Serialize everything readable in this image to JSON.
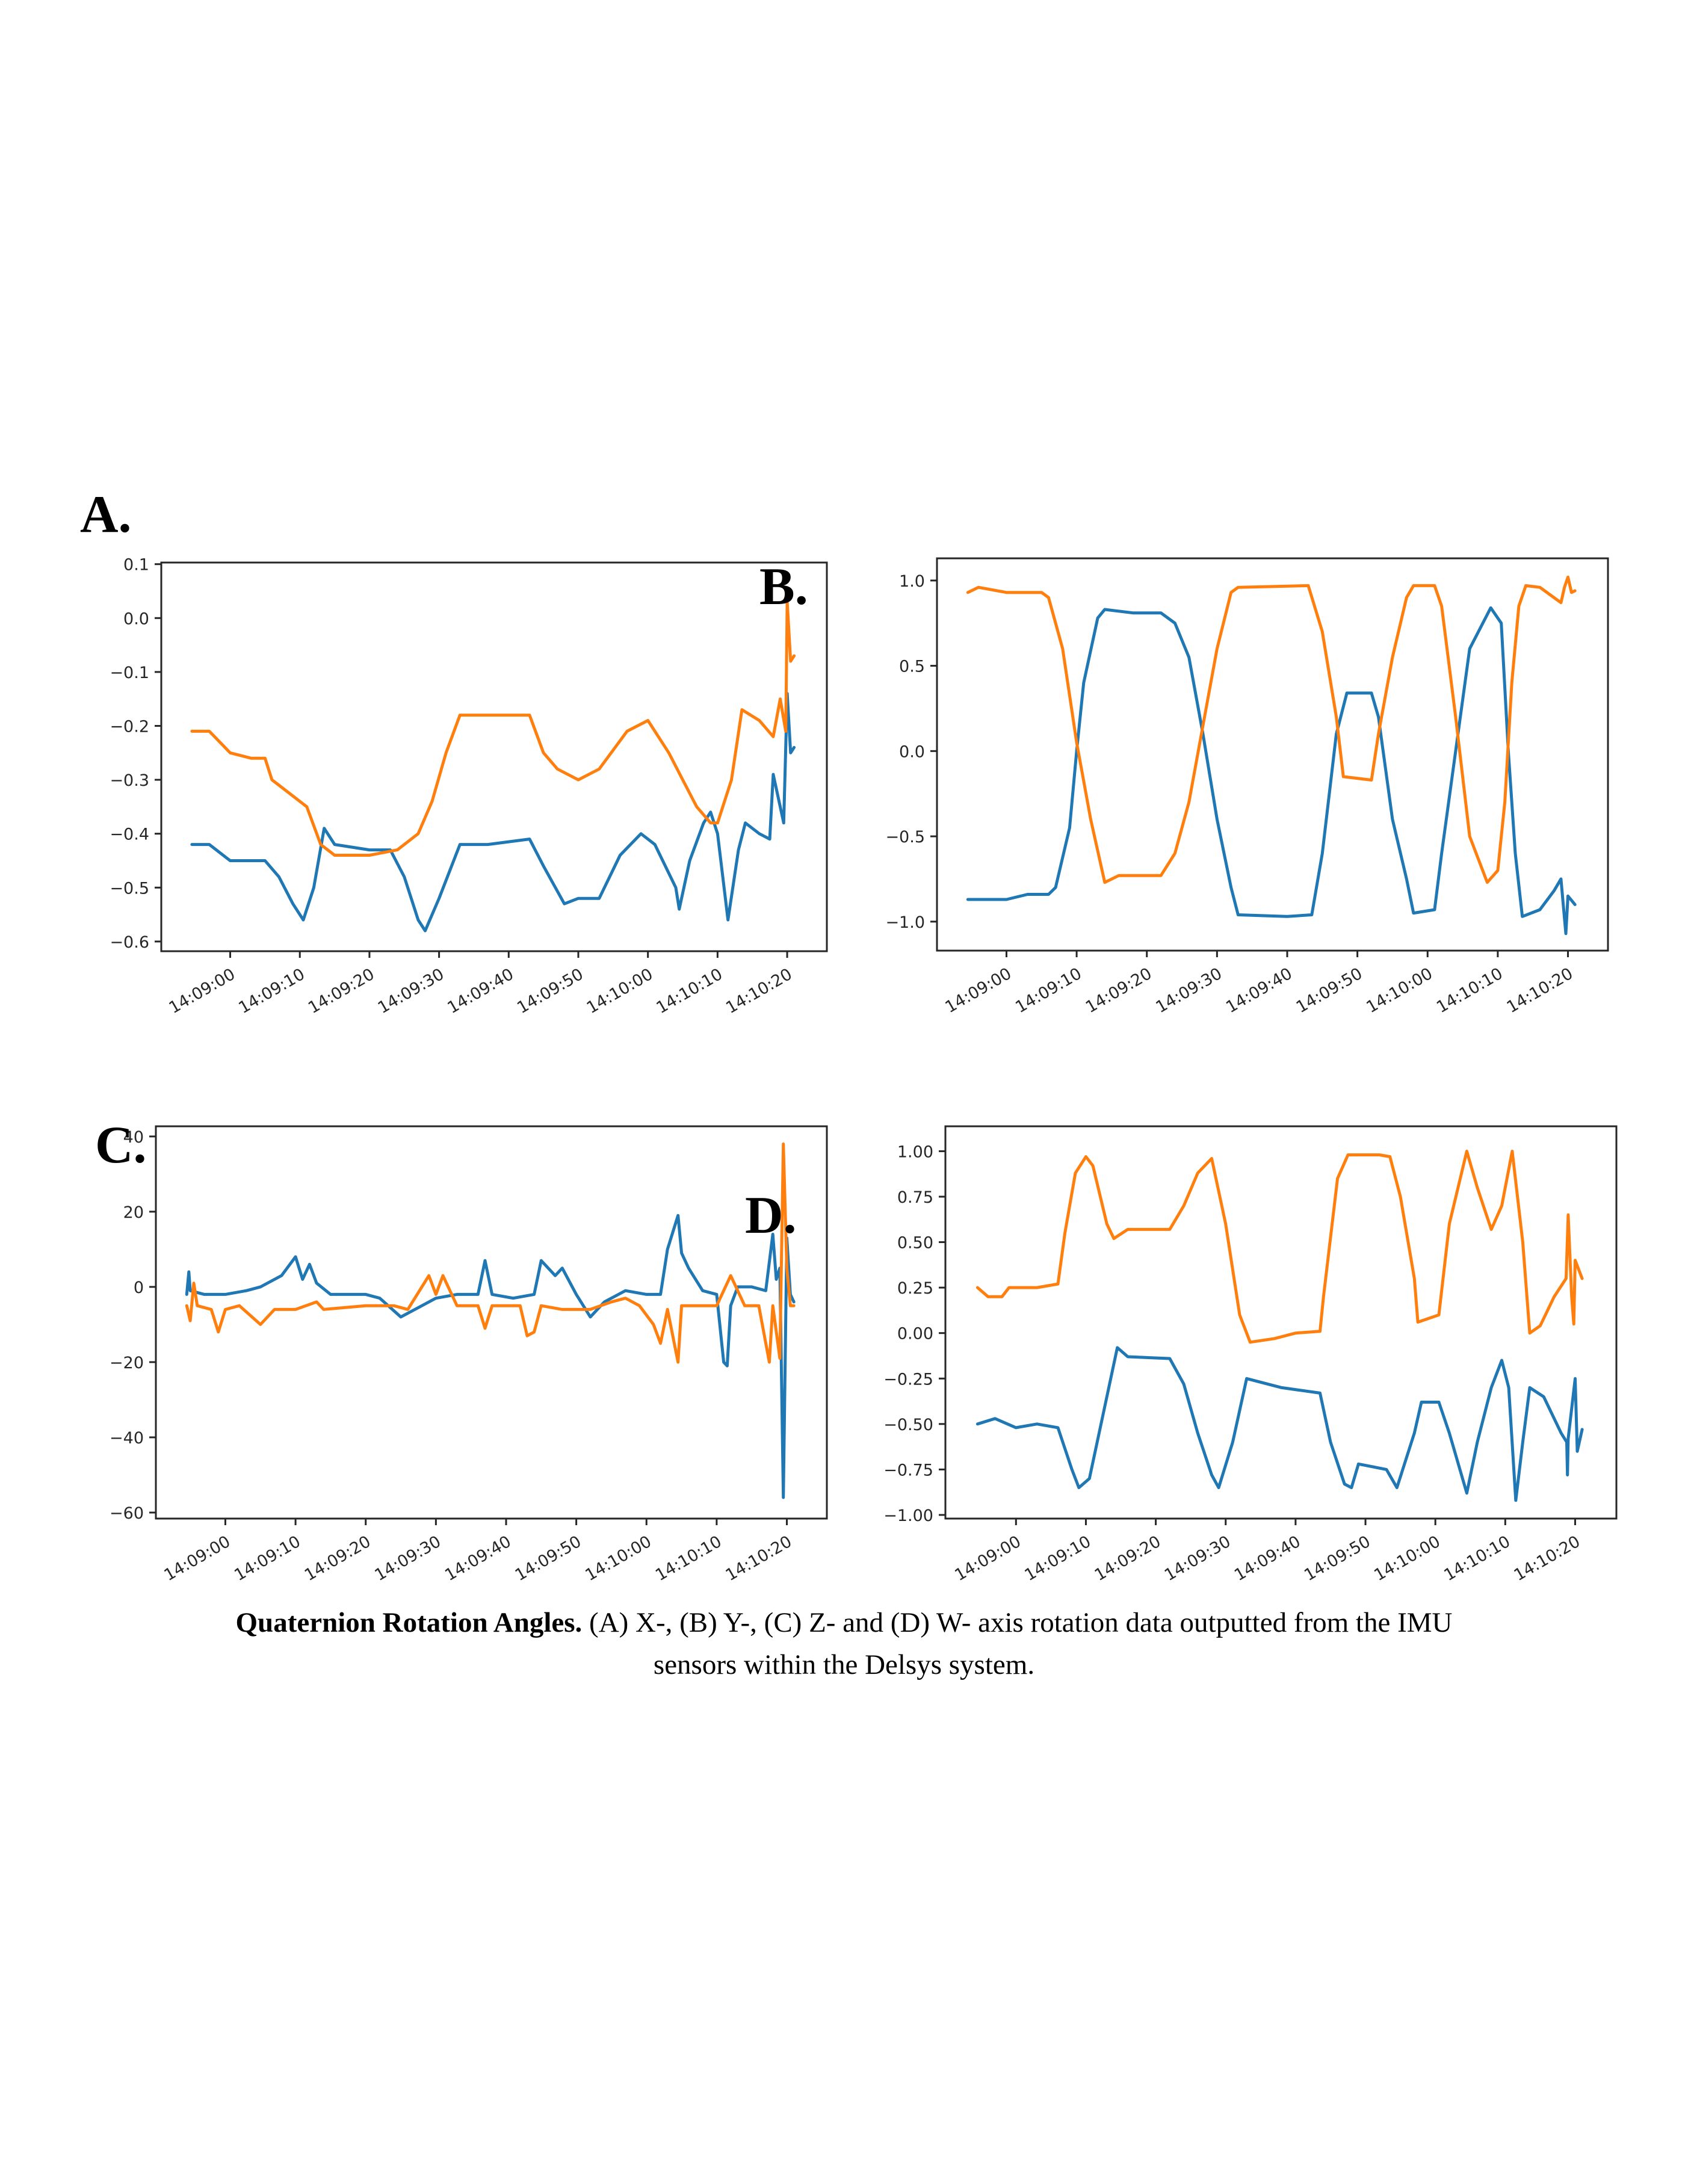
{
  "figure": {
    "panel_labels": [
      "A.",
      "B.",
      "C.",
      "D."
    ],
    "caption": {
      "bold": "Quaternion Rotation Angles.",
      "line1_rest": " (A) X-, (B) Y-, (C) Z- and (D) W- axis rotation data outputted from the IMU",
      "line2": "sensors within the Delsys system."
    },
    "colors": {
      "series1": "#1f77b4",
      "series2": "#ff7f0e",
      "axis": "#262626"
    }
  },
  "chart_data": [
    {
      "id": "A",
      "type": "line",
      "title": "",
      "xlabel": "",
      "ylabel": "",
      "x_unit": "seconds relative to 14:09:00",
      "xlim": [
        -9.9,
        85.7
      ],
      "ylim": [
        -0.618,
        0.103
      ],
      "xticks": [
        0,
        10,
        20,
        30,
        40,
        50,
        60,
        70,
        80
      ],
      "xtick_labels": [
        "14:09:00",
        "14:09:10",
        "14:09:20",
        "14:09:30",
        "14:09:40",
        "14:09:50",
        "14:10:00",
        "14:10:10",
        "14:10:20"
      ],
      "yticks": [
        0.1,
        0.0,
        -0.1,
        -0.2,
        -0.3,
        -0.4,
        -0.5,
        -0.6
      ],
      "ytick_labels": [
        "0.1",
        "0.0",
        "−0.1",
        "−0.2",
        "−0.3",
        "−0.4",
        "−0.5",
        "−0.6"
      ],
      "grid": false,
      "legend": "none",
      "series": [
        {
          "name": "series 1 (blue)",
          "color": "#1f77b4",
          "x": [
            -5.5,
            -3,
            0,
            5,
            7,
            9,
            10.5,
            12,
            13.5,
            15,
            20,
            23,
            25,
            27,
            28,
            30,
            33,
            37,
            43,
            45,
            48,
            50,
            53,
            56,
            59,
            61,
            64,
            64.5,
            66,
            68,
            69,
            70,
            71.5,
            73,
            74,
            76,
            77.5,
            78,
            79.5,
            80,
            80.5,
            81
          ],
          "y": [
            -0.42,
            -0.42,
            -0.45,
            -0.45,
            -0.48,
            -0.53,
            -0.56,
            -0.5,
            -0.39,
            -0.42,
            -0.43,
            -0.43,
            -0.48,
            -0.56,
            -0.58,
            -0.52,
            -0.42,
            -0.42,
            -0.41,
            -0.46,
            -0.53,
            -0.52,
            -0.52,
            -0.44,
            -0.4,
            -0.42,
            -0.5,
            -0.54,
            -0.45,
            -0.38,
            -0.36,
            -0.4,
            -0.56,
            -0.43,
            -0.38,
            -0.4,
            -0.41,
            -0.29,
            -0.38,
            -0.14,
            -0.25,
            -0.24
          ]
        },
        {
          "name": "series 2 (orange)",
          "color": "#ff7f0e",
          "x": [
            -5.5,
            -3,
            0,
            3,
            5,
            6,
            9,
            11,
            13,
            15,
            20,
            24,
            27,
            29,
            31,
            33,
            37,
            43,
            45,
            47,
            50,
            53,
            57,
            60,
            63,
            65,
            67,
            69,
            70,
            72,
            73.5,
            76,
            78,
            79,
            79.8,
            80,
            80.5,
            81
          ],
          "y": [
            -0.21,
            -0.21,
            -0.25,
            -0.26,
            -0.26,
            -0.3,
            -0.33,
            -0.35,
            -0.42,
            -0.44,
            -0.44,
            -0.43,
            -0.4,
            -0.34,
            -0.25,
            -0.18,
            -0.18,
            -0.18,
            -0.25,
            -0.28,
            -0.3,
            -0.28,
            -0.21,
            -0.19,
            -0.25,
            -0.3,
            -0.35,
            -0.38,
            -0.38,
            -0.3,
            -0.17,
            -0.19,
            -0.22,
            -0.15,
            -0.21,
            0.03,
            -0.08,
            -0.07
          ]
        }
      ]
    },
    {
      "id": "B",
      "type": "line",
      "title": "",
      "xlabel": "",
      "ylabel": "",
      "x_unit": "seconds relative to 14:09:00",
      "xlim": [
        -9.9,
        85.7
      ],
      "ylim": [
        -1.17,
        1.13
      ],
      "xticks": [
        0,
        10,
        20,
        30,
        40,
        50,
        60,
        70,
        80
      ],
      "xtick_labels": [
        "14:09:00",
        "14:09:10",
        "14:09:20",
        "14:09:30",
        "14:09:40",
        "14:09:50",
        "14:10:00",
        "14:10:10",
        "14:10:20"
      ],
      "yticks": [
        1.0,
        0.5,
        0.0,
        -0.5,
        -1.0
      ],
      "ytick_labels": [
        "1.0",
        "0.5",
        "0.0",
        "−0.5",
        "−1.0"
      ],
      "grid": false,
      "legend": "none",
      "series": [
        {
          "name": "series 1 (blue)",
          "color": "#1f77b4",
          "x": [
            -5.5,
            0,
            3,
            6,
            7,
            9,
            10,
            11,
            13,
            14,
            18,
            22,
            24,
            26,
            28,
            30,
            32,
            33,
            40,
            43.5,
            45,
            47,
            48.5,
            52,
            53,
            55,
            57,
            58,
            61,
            62,
            64,
            66,
            69,
            70.5,
            71.5,
            72.5,
            73.5,
            76,
            78,
            79,
            79.7,
            80,
            81
          ],
          "y": [
            -0.87,
            -0.87,
            -0.84,
            -0.84,
            -0.8,
            -0.45,
            0,
            0.4,
            0.78,
            0.83,
            0.81,
            0.81,
            0.75,
            0.55,
            0.1,
            -0.4,
            -0.8,
            -0.96,
            -0.97,
            -0.96,
            -0.6,
            0.1,
            0.34,
            0.34,
            0.2,
            -0.4,
            -0.75,
            -0.95,
            -0.93,
            -0.6,
            0,
            0.6,
            0.84,
            0.75,
            0,
            -0.6,
            -0.97,
            -0.93,
            -0.82,
            -0.75,
            -1.07,
            -0.85,
            -0.9
          ]
        },
        {
          "name": "series 2 (orange)",
          "color": "#ff7f0e",
          "x": [
            -5.5,
            -4,
            0,
            5,
            6,
            8,
            10,
            12,
            14,
            16,
            22,
            24,
            26,
            28,
            30,
            32,
            33,
            43,
            45,
            47,
            48,
            52,
            53,
            55,
            57,
            58,
            61,
            62,
            64,
            66,
            68.5,
            70,
            71,
            72,
            73,
            74,
            76,
            78,
            79,
            79.5,
            80,
            80.5,
            81
          ],
          "y": [
            0.93,
            0.96,
            0.93,
            0.93,
            0.9,
            0.6,
            0.05,
            -0.4,
            -0.77,
            -0.73,
            -0.73,
            -0.6,
            -0.3,
            0.15,
            0.6,
            0.93,
            0.96,
            0.97,
            0.7,
            0.2,
            -0.15,
            -0.17,
            0.1,
            0.55,
            0.9,
            0.97,
            0.97,
            0.85,
            0.2,
            -0.5,
            -0.77,
            -0.7,
            -0.3,
            0.4,
            0.85,
            0.97,
            0.96,
            0.9,
            0.87,
            0.96,
            1.02,
            0.93,
            0.94
          ]
        }
      ]
    },
    {
      "id": "C",
      "type": "line",
      "title": "",
      "xlabel": "",
      "ylabel": "",
      "x_unit": "seconds relative to 14:09:00",
      "xlim": [
        -9.9,
        85.7
      ],
      "ylim": [
        -61.6,
        42.7
      ],
      "xticks": [
        0,
        10,
        20,
        30,
        40,
        50,
        60,
        70,
        80
      ],
      "xtick_labels": [
        "14:09:00",
        "14:09:10",
        "14:09:20",
        "14:09:30",
        "14:09:40",
        "14:09:50",
        "14:10:00",
        "14:10:10",
        "14:10:20"
      ],
      "yticks": [
        40,
        20,
        0,
        -20,
        -40,
        -60
      ],
      "ytick_labels": [
        "40",
        "20",
        "0",
        "−20",
        "−40",
        "−60"
      ],
      "grid": false,
      "legend": "none",
      "series": [
        {
          "name": "series 1 (blue)",
          "color": "#1f77b4",
          "x": [
            -5.5,
            -5.2,
            -5,
            -3,
            0,
            3,
            5,
            8,
            10,
            11,
            12,
            13,
            15,
            20,
            22,
            25,
            27,
            30,
            33,
            36,
            37,
            38,
            41,
            44,
            45,
            47,
            48,
            50,
            52,
            54,
            57,
            60,
            62,
            63,
            64.5,
            65,
            66,
            68,
            70,
            71,
            71.5,
            72,
            73,
            75,
            77,
            78,
            78.5,
            79,
            79.5,
            80,
            80.5,
            81
          ],
          "y": [
            -2,
            4,
            -1,
            -2,
            -2,
            -1,
            0,
            3,
            8,
            2,
            6,
            1,
            -2,
            -2,
            -3,
            -8,
            -6,
            -3,
            -2,
            -2,
            7,
            -2,
            -3,
            -2,
            7,
            3,
            5,
            -2,
            -8,
            -4,
            -1,
            -2,
            -2,
            10,
            19,
            9,
            5,
            -1,
            -2,
            -20,
            -21,
            -5,
            0,
            0,
            -1,
            14,
            2,
            5,
            -56,
            13,
            -2,
            -4
          ]
        },
        {
          "name": "series 2 (orange)",
          "color": "#ff7f0e",
          "x": [
            -5.5,
            -5,
            -4.5,
            -4,
            -2,
            -1,
            0,
            2,
            5,
            7,
            10,
            13,
            14,
            20,
            24,
            26,
            29,
            30,
            31,
            33,
            36,
            37,
            38,
            42,
            43,
            44,
            45,
            48,
            52,
            55,
            57,
            59,
            61,
            62,
            63,
            64.5,
            65,
            68,
            70,
            72,
            74,
            76,
            77.5,
            78,
            79,
            79.5,
            80,
            80.5,
            81
          ],
          "y": [
            -5,
            -9,
            1,
            -5,
            -6,
            -12,
            -6,
            -5,
            -10,
            -6,
            -6,
            -4,
            -6,
            -5,
            -5,
            -6,
            3,
            -2,
            3,
            -5,
            -5,
            -11,
            -5,
            -5,
            -13,
            -12,
            -5,
            -6,
            -6,
            -4,
            -3,
            -5,
            -10,
            -15,
            -6,
            -20,
            -5,
            -5,
            -5,
            3,
            -5,
            -5,
            -20,
            -5,
            -19,
            38,
            5,
            -5,
            -5
          ]
        }
      ]
    },
    {
      "id": "D",
      "type": "line",
      "title": "",
      "xlabel": "",
      "ylabel": "",
      "x_unit": "seconds relative to 14:09:00",
      "xlim": [
        -10.1,
        85.9
      ],
      "ylim": [
        -1.02,
        1.137
      ],
      "xticks": [
        0,
        10,
        20,
        30,
        40,
        50,
        60,
        70,
        80
      ],
      "xtick_labels": [
        "14:09:00",
        "14:09:10",
        "14:09:20",
        "14:09:30",
        "14:09:40",
        "14:09:50",
        "14:10:00",
        "14:10:10",
        "14:10:20"
      ],
      "yticks": [
        1.0,
        0.75,
        0.5,
        0.25,
        0.0,
        -0.25,
        -0.5,
        -0.75,
        -1.0
      ],
      "ytick_labels": [
        "1.00",
        "0.75",
        "0.50",
        "0.25",
        "0.00",
        "−0.25",
        "−0.50",
        "−0.75",
        "−1.00"
      ],
      "grid": false,
      "legend": "none",
      "series": [
        {
          "name": "series 1 (blue)",
          "color": "#1f77b4",
          "x": [
            -5.5,
            -3,
            0,
            3,
            6,
            8,
            9,
            10.5,
            13,
            14.5,
            16,
            22,
            24,
            26,
            28,
            29,
            31,
            33,
            38,
            43.5,
            45,
            47,
            48,
            49,
            53,
            54.5,
            57,
            58,
            60.5,
            62,
            64.5,
            66,
            68,
            69.5,
            70.5,
            71.5,
            72.5,
            73.5,
            75.5,
            78,
            78.8,
            78.9,
            79,
            80,
            80.3,
            81
          ],
          "y": [
            -0.5,
            -0.47,
            -0.52,
            -0.5,
            -0.52,
            -0.75,
            -0.85,
            -0.8,
            -0.35,
            -0.08,
            -0.13,
            -0.14,
            -0.28,
            -0.55,
            -0.78,
            -0.85,
            -0.6,
            -0.25,
            -0.3,
            -0.33,
            -0.6,
            -0.83,
            -0.85,
            -0.72,
            -0.75,
            -0.85,
            -0.55,
            -0.38,
            -0.38,
            -0.55,
            -0.88,
            -0.6,
            -0.3,
            -0.15,
            -0.3,
            -0.92,
            -0.6,
            -0.3,
            -0.35,
            -0.55,
            -0.6,
            -0.78,
            -0.58,
            -0.25,
            -0.65,
            -0.53
          ]
        },
        {
          "name": "series 2 (orange)",
          "color": "#ff7f0e",
          "x": [
            -5.5,
            -4,
            -2,
            -1,
            3,
            6,
            7,
            8.5,
            10,
            11,
            13,
            14,
            16,
            22,
            24,
            26,
            28,
            30,
            32,
            33.5,
            37,
            40,
            43.5,
            44,
            46,
            47.5,
            52,
            53.5,
            55,
            57,
            57.5,
            60.5,
            62,
            64.5,
            66,
            68,
            69.5,
            71,
            72.5,
            73.5,
            75,
            77,
            78.7,
            79,
            79.5,
            79.8,
            80,
            81
          ],
          "y": [
            0.25,
            0.2,
            0.2,
            0.25,
            0.25,
            0.27,
            0.55,
            0.88,
            0.97,
            0.92,
            0.6,
            0.52,
            0.57,
            0.57,
            0.7,
            0.88,
            0.96,
            0.6,
            0.1,
            -0.05,
            -0.03,
            0,
            0.01,
            0.2,
            0.85,
            0.98,
            0.98,
            0.97,
            0.75,
            0.3,
            0.06,
            0.1,
            0.6,
            1.0,
            0.8,
            0.57,
            0.7,
            1.0,
            0.5,
            0,
            0.04,
            0.2,
            0.3,
            0.65,
            0.2,
            0.05,
            0.4,
            0.3
          ]
        }
      ]
    }
  ]
}
